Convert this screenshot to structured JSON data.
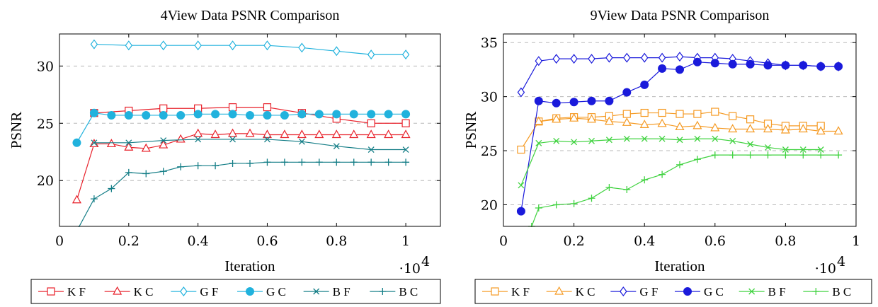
{
  "chart_data": [
    {
      "type": "line",
      "title": "4View Data PSNR Comparison",
      "xlabel": "Iteration",
      "ylabel": "PSNR",
      "x_multiplier": "·10",
      "x_multiplier_exp": "4",
      "xlim": [
        0,
        1.1
      ],
      "ylim": [
        16,
        32.8
      ],
      "xticks": [
        0,
        0.2,
        0.4,
        0.6,
        0.8,
        1
      ],
      "xtick_labels": [
        "0",
        "0.2",
        "0.4",
        "0.6",
        "0.8",
        "1"
      ],
      "yticks": [
        20,
        25,
        30
      ],
      "ytick_labels": [
        "20",
        "25",
        "30"
      ],
      "grid": "horizontal-dashed",
      "legend_position": "below",
      "series": [
        {
          "name": "K F",
          "color": "#e8202a",
          "marker": "square-open",
          "x": [
            0.1,
            0.2,
            0.3,
            0.4,
            0.5,
            0.6,
            0.7,
            0.8,
            0.9,
            1.0
          ],
          "y": [
            25.9,
            26.1,
            26.3,
            26.3,
            26.4,
            26.4,
            25.9,
            25.4,
            25.0,
            25.0
          ]
        },
        {
          "name": "K C",
          "color": "#e8202a",
          "marker": "triangle-open",
          "x": [
            0.05,
            0.1,
            0.15,
            0.2,
            0.25,
            0.3,
            0.35,
            0.4,
            0.45,
            0.5,
            0.55,
            0.6,
            0.65,
            0.7,
            0.75,
            0.8,
            0.85,
            0.9,
            0.95,
            1.0
          ],
          "y": [
            18.3,
            23.2,
            23.2,
            22.9,
            22.8,
            23.1,
            23.6,
            24.1,
            24.0,
            24.1,
            24.1,
            24.0,
            24.0,
            24.0,
            24.0,
            24.0,
            24.0,
            24.0,
            24.0,
            24.0
          ]
        },
        {
          "name": "G F",
          "color": "#21b2dd",
          "marker": "diamond-open",
          "x": [
            0.1,
            0.2,
            0.3,
            0.4,
            0.5,
            0.6,
            0.7,
            0.8,
            0.9,
            1.0
          ],
          "y": [
            31.9,
            31.8,
            31.8,
            31.8,
            31.8,
            31.8,
            31.6,
            31.3,
            31.0,
            31.0
          ]
        },
        {
          "name": "G C",
          "color": "#21b2dd",
          "marker": "circle-filled",
          "x": [
            0.05,
            0.1,
            0.15,
            0.2,
            0.25,
            0.3,
            0.35,
            0.4,
            0.45,
            0.5,
            0.55,
            0.6,
            0.65,
            0.7,
            0.75,
            0.8,
            0.85,
            0.9,
            0.95,
            1.0
          ],
          "y": [
            23.3,
            25.9,
            25.7,
            25.7,
            25.7,
            25.7,
            25.7,
            25.8,
            25.8,
            25.8,
            25.7,
            25.7,
            25.7,
            25.8,
            25.8,
            25.8,
            25.8,
            25.8,
            25.8,
            25.8
          ]
        },
        {
          "name": "B F",
          "color": "#137d86",
          "marker": "x",
          "x": [
            0.1,
            0.2,
            0.3,
            0.4,
            0.5,
            0.6,
            0.7,
            0.8,
            0.9,
            1.0
          ],
          "y": [
            23.3,
            23.3,
            23.5,
            23.6,
            23.6,
            23.6,
            23.4,
            23.0,
            22.7,
            22.7
          ]
        },
        {
          "name": "B C",
          "color": "#137d86",
          "marker": "plus",
          "x": [
            0.05,
            0.1,
            0.15,
            0.2,
            0.25,
            0.3,
            0.35,
            0.4,
            0.45,
            0.5,
            0.55,
            0.6,
            0.65,
            0.7,
            0.75,
            0.8,
            0.85,
            0.9,
            0.95,
            1.0
          ],
          "y": [
            15.6,
            18.4,
            19.3,
            20.7,
            20.6,
            20.8,
            21.2,
            21.3,
            21.3,
            21.5,
            21.5,
            21.6,
            21.6,
            21.6,
            21.6,
            21.6,
            21.6,
            21.6,
            21.6,
            21.6
          ]
        }
      ]
    },
    {
      "type": "line",
      "title": "9View Data PSNR Comparison",
      "xlabel": "Iteration",
      "ylabel": "PSNR",
      "x_multiplier": "·10",
      "x_multiplier_exp": "4",
      "xlim": [
        0,
        1
      ],
      "ylim": [
        18,
        35.8
      ],
      "xticks": [
        0,
        0.2,
        0.4,
        0.6,
        0.8,
        1
      ],
      "xtick_labels": [
        "0",
        "0.2",
        "0.4",
        "0.6",
        "0.8",
        "1"
      ],
      "yticks": [
        20,
        25,
        30,
        35
      ],
      "ytick_labels": [
        "20",
        "25",
        "30",
        "35"
      ],
      "grid": "horizontal-dashed",
      "legend_position": "below",
      "series": [
        {
          "name": "K F",
          "color": "#f59a23",
          "marker": "square-open",
          "x": [
            0.05,
            0.1,
            0.15,
            0.2,
            0.25,
            0.3,
            0.35,
            0.4,
            0.45,
            0.5,
            0.55,
            0.6,
            0.65,
            0.7,
            0.75,
            0.8,
            0.85,
            0.9
          ],
          "y": [
            25.1,
            27.7,
            28.0,
            28.1,
            28.1,
            28.2,
            28.4,
            28.5,
            28.5,
            28.4,
            28.4,
            28.6,
            28.2,
            27.9,
            27.5,
            27.3,
            27.3,
            27.3
          ]
        },
        {
          "name": "K C",
          "color": "#f59a23",
          "marker": "triangle-open",
          "x": [
            0.1,
            0.15,
            0.2,
            0.25,
            0.3,
            0.35,
            0.4,
            0.45,
            0.5,
            0.55,
            0.6,
            0.65,
            0.7,
            0.75,
            0.8,
            0.85,
            0.9,
            0.95
          ],
          "y": [
            27.7,
            27.9,
            28.0,
            27.9,
            27.7,
            27.6,
            27.4,
            27.5,
            27.2,
            27.3,
            27.1,
            27.0,
            27.0,
            27.0,
            26.9,
            27.0,
            26.8,
            26.8
          ]
        },
        {
          "name": "G F",
          "color": "#1a1adb",
          "marker": "diamond-open",
          "x": [
            0.05,
            0.1,
            0.15,
            0.2,
            0.25,
            0.3,
            0.35,
            0.4,
            0.45,
            0.5,
            0.55,
            0.6,
            0.65,
            0.7,
            0.75,
            0.8,
            0.85,
            0.9,
            0.95
          ],
          "y": [
            30.4,
            33.3,
            33.5,
            33.5,
            33.5,
            33.6,
            33.6,
            33.6,
            33.6,
            33.7,
            33.6,
            33.6,
            33.5,
            33.3,
            33.1,
            32.9,
            32.9,
            32.8,
            32.8
          ]
        },
        {
          "name": "G C",
          "color": "#1a1adb",
          "marker": "circle-filled",
          "x": [
            0.05,
            0.1,
            0.15,
            0.2,
            0.25,
            0.3,
            0.35,
            0.4,
            0.45,
            0.5,
            0.55,
            0.6,
            0.65,
            0.7,
            0.75,
            0.8,
            0.85,
            0.9,
            0.95
          ],
          "y": [
            19.4,
            29.6,
            29.4,
            29.5,
            29.6,
            29.6,
            30.4,
            31.1,
            32.6,
            32.5,
            33.2,
            33.1,
            33.0,
            33.0,
            32.9,
            32.9,
            32.9,
            32.8,
            32.8
          ]
        },
        {
          "name": "B F",
          "color": "#3fd23f",
          "marker": "x",
          "x": [
            0.05,
            0.1,
            0.15,
            0.2,
            0.25,
            0.3,
            0.35,
            0.4,
            0.45,
            0.5,
            0.55,
            0.6,
            0.65,
            0.7,
            0.75,
            0.8,
            0.85,
            0.9
          ],
          "y": [
            21.8,
            25.7,
            25.9,
            25.8,
            25.9,
            26.0,
            26.1,
            26.1,
            26.1,
            26.0,
            26.1,
            26.1,
            25.9,
            25.6,
            25.3,
            25.1,
            25.1,
            25.1
          ]
        },
        {
          "name": "B C",
          "color": "#3fd23f",
          "marker": "plus",
          "x": [
            0.08,
            0.1,
            0.15,
            0.2,
            0.25,
            0.3,
            0.35,
            0.4,
            0.45,
            0.5,
            0.55,
            0.6,
            0.65,
            0.7,
            0.75,
            0.8,
            0.85,
            0.9,
            0.95
          ],
          "y": [
            18.0,
            19.7,
            20.0,
            20.1,
            20.6,
            21.6,
            21.4,
            22.3,
            22.8,
            23.7,
            24.2,
            24.6,
            24.6,
            24.6,
            24.6,
            24.6,
            24.6,
            24.6,
            24.6
          ]
        }
      ]
    }
  ]
}
